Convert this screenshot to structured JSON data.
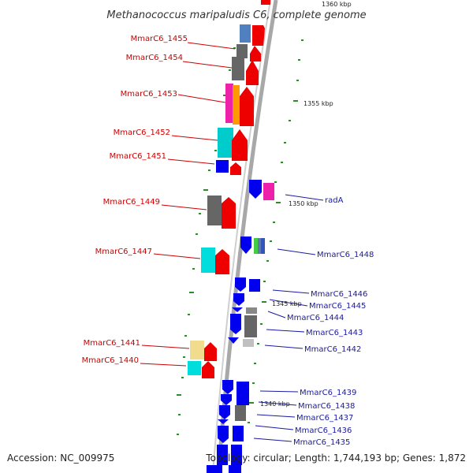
{
  "title": "Methanococcus maripaludis C6, complete genome",
  "accession": "Accession: NC_009975",
  "topology": "Topology: circular; Length: 1,744,193 bp; Genes: 1,872",
  "colors": {
    "label_left": "#cc0000",
    "label_right": "#1a1aa0",
    "tick": "#2e8b2e",
    "backbone": "#999999"
  },
  "scale_ticks": [
    {
      "label": "1360 kbp",
      "kbp": 1360
    },
    {
      "label": "1355 kbp",
      "kbp": 1355
    },
    {
      "label": "1350 kbp",
      "kbp": 1350
    },
    {
      "label": "1345 kbp",
      "kbp": 1345
    },
    {
      "label": "1340 kbp",
      "kbp": 1340
    }
  ],
  "genes_left": [
    {
      "label": "MmarC6_1455",
      "color": "#cc0000"
    },
    {
      "label": "MmarC6_1454",
      "color": "#cc0000"
    },
    {
      "label": "MmarC6_1453",
      "color": "#cc0000"
    },
    {
      "label": "MmarC6_1452",
      "color": "#cc0000"
    },
    {
      "label": "MmarC6_1451",
      "color": "#cc0000"
    },
    {
      "label": "MmarC6_1449",
      "color": "#cc0000"
    },
    {
      "label": "MmarC6_1447",
      "color": "#cc0000"
    },
    {
      "label": "MmarC6_1441",
      "color": "#cc0000"
    },
    {
      "label": "MmarC6_1440",
      "color": "#cc0000"
    }
  ],
  "genes_right": [
    {
      "label": "radA",
      "color": "#1a1aa0"
    },
    {
      "label": "MmarC6_1448",
      "color": "#1a1aa0"
    },
    {
      "label": "MmarC6_1446",
      "color": "#1a1aa0"
    },
    {
      "label": "MmarC6_1445",
      "color": "#1a1aa0"
    },
    {
      "label": "MmarC6_1444",
      "color": "#1a1aa0"
    },
    {
      "label": "MmarC6_1443",
      "color": "#1a1aa0"
    },
    {
      "label": "MmarC6_1442",
      "color": "#1a1aa0"
    },
    {
      "label": "MmarC6_1439",
      "color": "#1a1aa0"
    },
    {
      "label": "MmarC6_1438",
      "color": "#1a1aa0"
    },
    {
      "label": "MmarC6_1437",
      "color": "#1a1aa0"
    },
    {
      "label": "MmarC6_1436",
      "color": "#1a1aa0"
    },
    {
      "label": "MmarC6_1435",
      "color": "#1a1aa0"
    }
  ]
}
